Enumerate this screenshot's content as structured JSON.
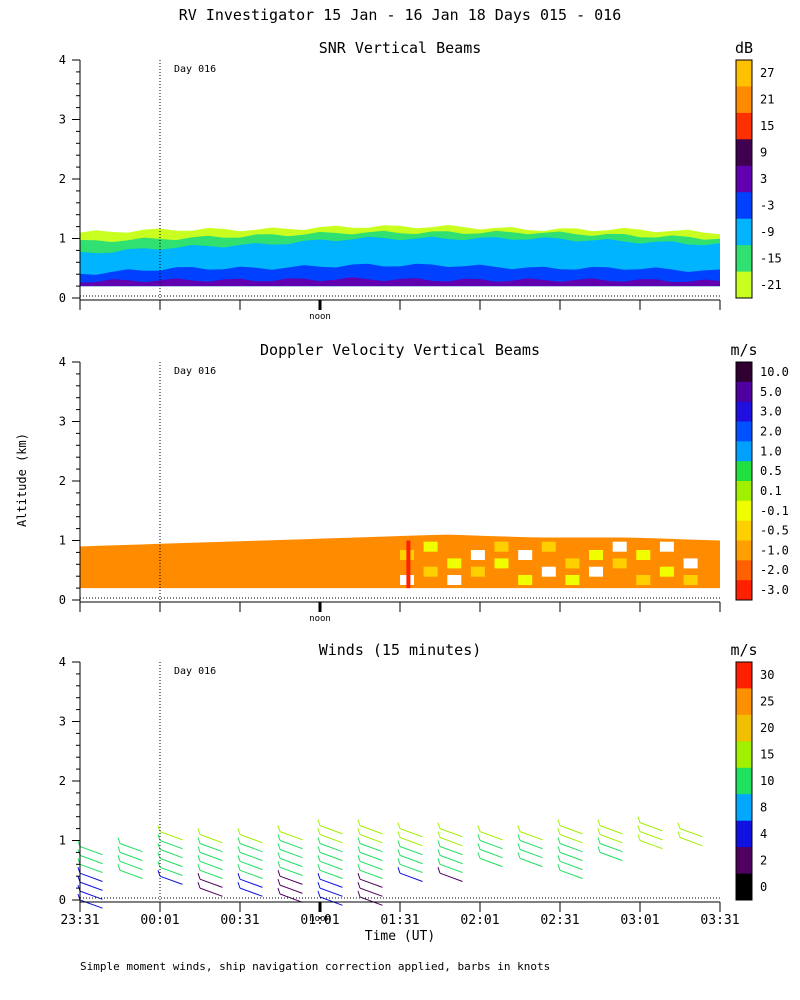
{
  "page_title": "RV Investigator  15 Jan - 16 Jan 18 Days 015 - 016",
  "y_label": "Altitude (km)",
  "footer_note": "Simple moment winds, ship navigation correction applied, barbs in knots",
  "chart_data": [
    {
      "type": "heatmap",
      "title": "SNR Vertical Beams",
      "units": "dB",
      "ylim": [
        0,
        4
      ],
      "y_ticks": [
        "0",
        "1",
        "2",
        "3",
        "4"
      ],
      "x_ticks": [
        "",
        "",
        "",
        "",
        "",
        "",
        "",
        "",
        ""
      ],
      "day_marker": "Day 016",
      "noon_label": "noon",
      "colorbar": {
        "labels": [
          "27",
          "21",
          "15",
          "9",
          "3",
          "-3",
          "-9",
          "-15",
          "-21"
        ],
        "colors": [
          "#ffc000",
          "#ff8c00",
          "#ff3000",
          "#400050",
          "#6000b0",
          "#0040ff",
          "#00b4ff",
          "#30e070",
          "#c8ff20"
        ]
      },
      "layers": [
        {
          "level": "-21",
          "color": "#c8ff20",
          "bottom_km": 0.2,
          "top_km": [
            1.1,
            1.15,
            1.15,
            1.2,
            1.2,
            1.15,
            1.15,
            1.1
          ]
        },
        {
          "level": "-15",
          "color": "#30e070",
          "bottom_km": 0.2,
          "top_km": [
            0.95,
            1.0,
            1.05,
            1.1,
            1.1,
            1.1,
            1.05,
            1.0
          ]
        },
        {
          "level": "-9",
          "color": "#00b4ff",
          "bottom_km": 0.2,
          "top_km": [
            0.75,
            0.85,
            0.9,
            1.0,
            1.0,
            1.0,
            0.95,
            0.9
          ]
        },
        {
          "level": "-3",
          "color": "#0040ff",
          "bottom_km": 0.2,
          "top_km": [
            0.4,
            0.5,
            0.5,
            0.55,
            0.55,
            0.5,
            0.5,
            0.45
          ]
        },
        {
          "level": "3",
          "color": "#6000b0",
          "bottom_km": 0.2,
          "top_km": [
            0.28,
            0.3,
            0.3,
            0.32,
            0.3,
            0.3,
            0.3,
            0.28
          ]
        }
      ]
    },
    {
      "type": "heatmap",
      "title": "Doppler Velocity Vertical Beams",
      "units": "m/s",
      "ylim": [
        0,
        4
      ],
      "y_ticks": [
        "0",
        "1",
        "2",
        "3",
        "4"
      ],
      "x_ticks": [
        "",
        "",
        "",
        "",
        "",
        "",
        "",
        "",
        ""
      ],
      "day_marker": "Day 016",
      "noon_label": "noon",
      "colorbar": {
        "labels": [
          "10.0",
          "5.0",
          "3.0",
          "2.0",
          "1.0",
          "0.5",
          "0.1",
          "-0.1",
          "-0.5",
          "-1.0",
          "-2.0",
          "-3.0"
        ],
        "colors": [
          "#300030",
          "#5000a0",
          "#2010e0",
          "#0050ff",
          "#00a0ff",
          "#20e040",
          "#a0f000",
          "#f0ff00",
          "#ffd000",
          "#ffa000",
          "#ff6000",
          "#ff2000"
        ]
      },
      "fill": {
        "bottom_km": 0.2,
        "top_km": [
          0.9,
          0.95,
          1.0,
          1.05,
          1.1,
          1.05,
          1.05,
          1.0
        ]
      }
    },
    {
      "type": "barbs",
      "title": "Winds (15 minutes)",
      "units": "m/s",
      "ylim": [
        0,
        4
      ],
      "y_ticks": [
        "0",
        "1",
        "2",
        "3",
        "4"
      ],
      "x_ticks": [
        "23:31",
        "00:01",
        "00:31",
        "01:01",
        "01:31",
        "02:01",
        "02:31",
        "03:01",
        "03:31"
      ],
      "xlabel": "Time (UT)",
      "day_marker": "Day 016",
      "noon_label": "noon",
      "colorbar": {
        "labels": [
          "30",
          "25",
          "20",
          "15",
          "10",
          "8",
          "4",
          "2",
          "0"
        ],
        "colors": [
          "#ff2000",
          "#ff9000",
          "#f0c000",
          "#a0f000",
          "#20e060",
          "#00a8ff",
          "#1010e0",
          "#500060",
          "#000000"
        ]
      },
      "barb_times_h": [
        0.0,
        0.25,
        0.5,
        0.75,
        1.0,
        1.25,
        1.5,
        1.75,
        2.0,
        2.25,
        2.5,
        2.75,
        3.0,
        3.25,
        3.5,
        3.75
      ],
      "barb_top_km": [
        0.9,
        0.95,
        1.15,
        1.1,
        1.1,
        1.15,
        1.25,
        1.25,
        1.2,
        1.2,
        1.15,
        1.15,
        1.25,
        1.25,
        1.3,
        1.2
      ],
      "barb_bottom_km": [
        0.0,
        0.5,
        0.35,
        0.2,
        0.1,
        0.0,
        0.0,
        0.0,
        0.4,
        0.4,
        0.6,
        0.6,
        0.5,
        0.8,
        1.0,
        1.0
      ]
    }
  ]
}
